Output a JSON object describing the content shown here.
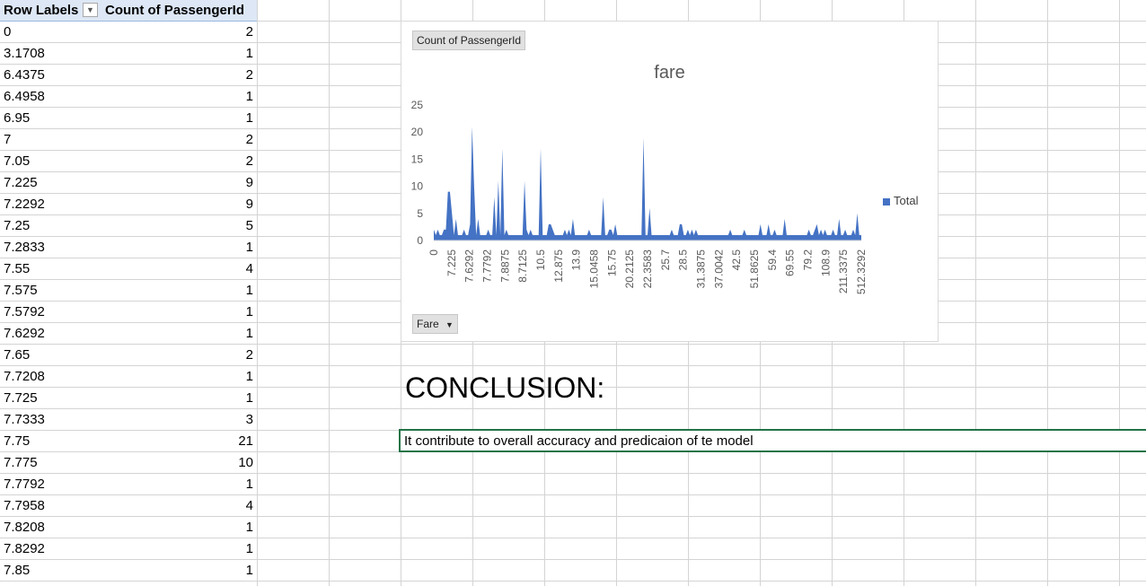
{
  "pivot": {
    "header_row_labels": "Row Labels",
    "header_count": "Count of PassengerId",
    "rows": [
      {
        "label": "0",
        "count": "2"
      },
      {
        "label": "3.1708",
        "count": "1"
      },
      {
        "label": "6.4375",
        "count": "2"
      },
      {
        "label": "6.4958",
        "count": "1"
      },
      {
        "label": "6.95",
        "count": "1"
      },
      {
        "label": "7",
        "count": "2"
      },
      {
        "label": "7.05",
        "count": "2"
      },
      {
        "label": "7.225",
        "count": "9"
      },
      {
        "label": "7.2292",
        "count": "9"
      },
      {
        "label": "7.25",
        "count": "5"
      },
      {
        "label": "7.2833",
        "count": "1"
      },
      {
        "label": "7.55",
        "count": "4"
      },
      {
        "label": "7.575",
        "count": "1"
      },
      {
        "label": "7.5792",
        "count": "1"
      },
      {
        "label": "7.6292",
        "count": "1"
      },
      {
        "label": "7.65",
        "count": "2"
      },
      {
        "label": "7.7208",
        "count": "1"
      },
      {
        "label": "7.725",
        "count": "1"
      },
      {
        "label": "7.7333",
        "count": "3"
      },
      {
        "label": "7.75",
        "count": "21"
      },
      {
        "label": "7.775",
        "count": "10"
      },
      {
        "label": "7.7792",
        "count": "1"
      },
      {
        "label": "7.7958",
        "count": "4"
      },
      {
        "label": "7.8208",
        "count": "1"
      },
      {
        "label": "7.8292",
        "count": "1"
      },
      {
        "label": "7.85",
        "count": "1"
      }
    ]
  },
  "chart": {
    "value_field_button": "Count of PassengerId",
    "axis_field_button": "Fare",
    "legend_label": "Total",
    "color": "#4472c4"
  },
  "chart_data": {
    "type": "area",
    "title": "fare",
    "xlabel": "",
    "ylabel": "",
    "ylim": [
      0,
      25
    ],
    "yticks": [
      0,
      5,
      10,
      15,
      20,
      25
    ],
    "x_tick_labels": [
      "0",
      "7.225",
      "7.6292",
      "7.7792",
      "7.8875",
      "8.7125",
      "10.5",
      "12.875",
      "13.9",
      "15.0458",
      "15.75",
      "20.2125",
      "22.3583",
      "25.7",
      "28.5",
      "31.3875",
      "37.0042",
      "42.5",
      "51.8625",
      "59.4",
      "69.55",
      "79.2",
      "108.9",
      "211.3375",
      "512.3292"
    ],
    "legend": "right",
    "series": [
      {
        "name": "Total",
        "values": [
          2,
          1,
          2,
          1,
          1,
          2,
          2,
          9,
          9,
          5,
          1,
          4,
          1,
          1,
          1,
          2,
          1,
          1,
          3,
          21,
          10,
          1,
          4,
          1,
          1,
          1,
          1,
          2,
          1,
          1,
          8,
          1,
          11,
          1,
          17,
          1,
          2,
          1,
          1,
          1,
          1,
          1,
          1,
          1,
          1,
          11,
          2,
          1,
          2,
          1,
          1,
          1,
          1,
          17,
          1,
          1,
          1,
          3,
          3,
          2,
          1,
          1,
          1,
          1,
          1,
          2,
          1,
          2,
          1,
          4,
          1,
          1,
          1,
          1,
          1,
          1,
          1,
          2,
          1,
          1,
          1,
          1,
          1,
          1,
          8,
          1,
          1,
          2,
          2,
          1,
          3,
          1,
          1,
          1,
          1,
          1,
          1,
          1,
          1,
          1,
          1,
          1,
          1,
          1,
          19,
          1,
          1,
          6,
          1,
          1,
          1,
          1,
          1,
          1,
          1,
          1,
          1,
          1,
          2,
          1,
          1,
          1,
          3,
          3,
          1,
          1,
          2,
          1,
          2,
          1,
          2,
          1,
          1,
          1,
          1,
          1,
          1,
          1,
          1,
          1,
          1,
          1,
          1,
          1,
          1,
          1,
          1,
          2,
          1,
          1,
          1,
          1,
          1,
          1,
          2,
          1,
          1,
          1,
          1,
          1,
          1,
          1,
          3,
          1,
          1,
          1,
          3,
          1,
          1,
          2,
          1,
          1,
          1,
          1,
          4,
          1,
          1,
          1,
          1,
          1,
          1,
          1,
          1,
          1,
          1,
          1,
          2,
          1,
          1,
          2,
          3,
          1,
          2,
          1,
          2,
          1,
          1,
          1,
          2,
          1,
          1,
          4,
          1,
          1,
          2,
          1,
          1,
          1,
          2,
          1,
          5,
          1,
          1
        ]
      }
    ]
  },
  "conclusion_heading": "CONCLUSION:",
  "conclusion_text": "It contribute to overall accuracy and predicaion of te model"
}
